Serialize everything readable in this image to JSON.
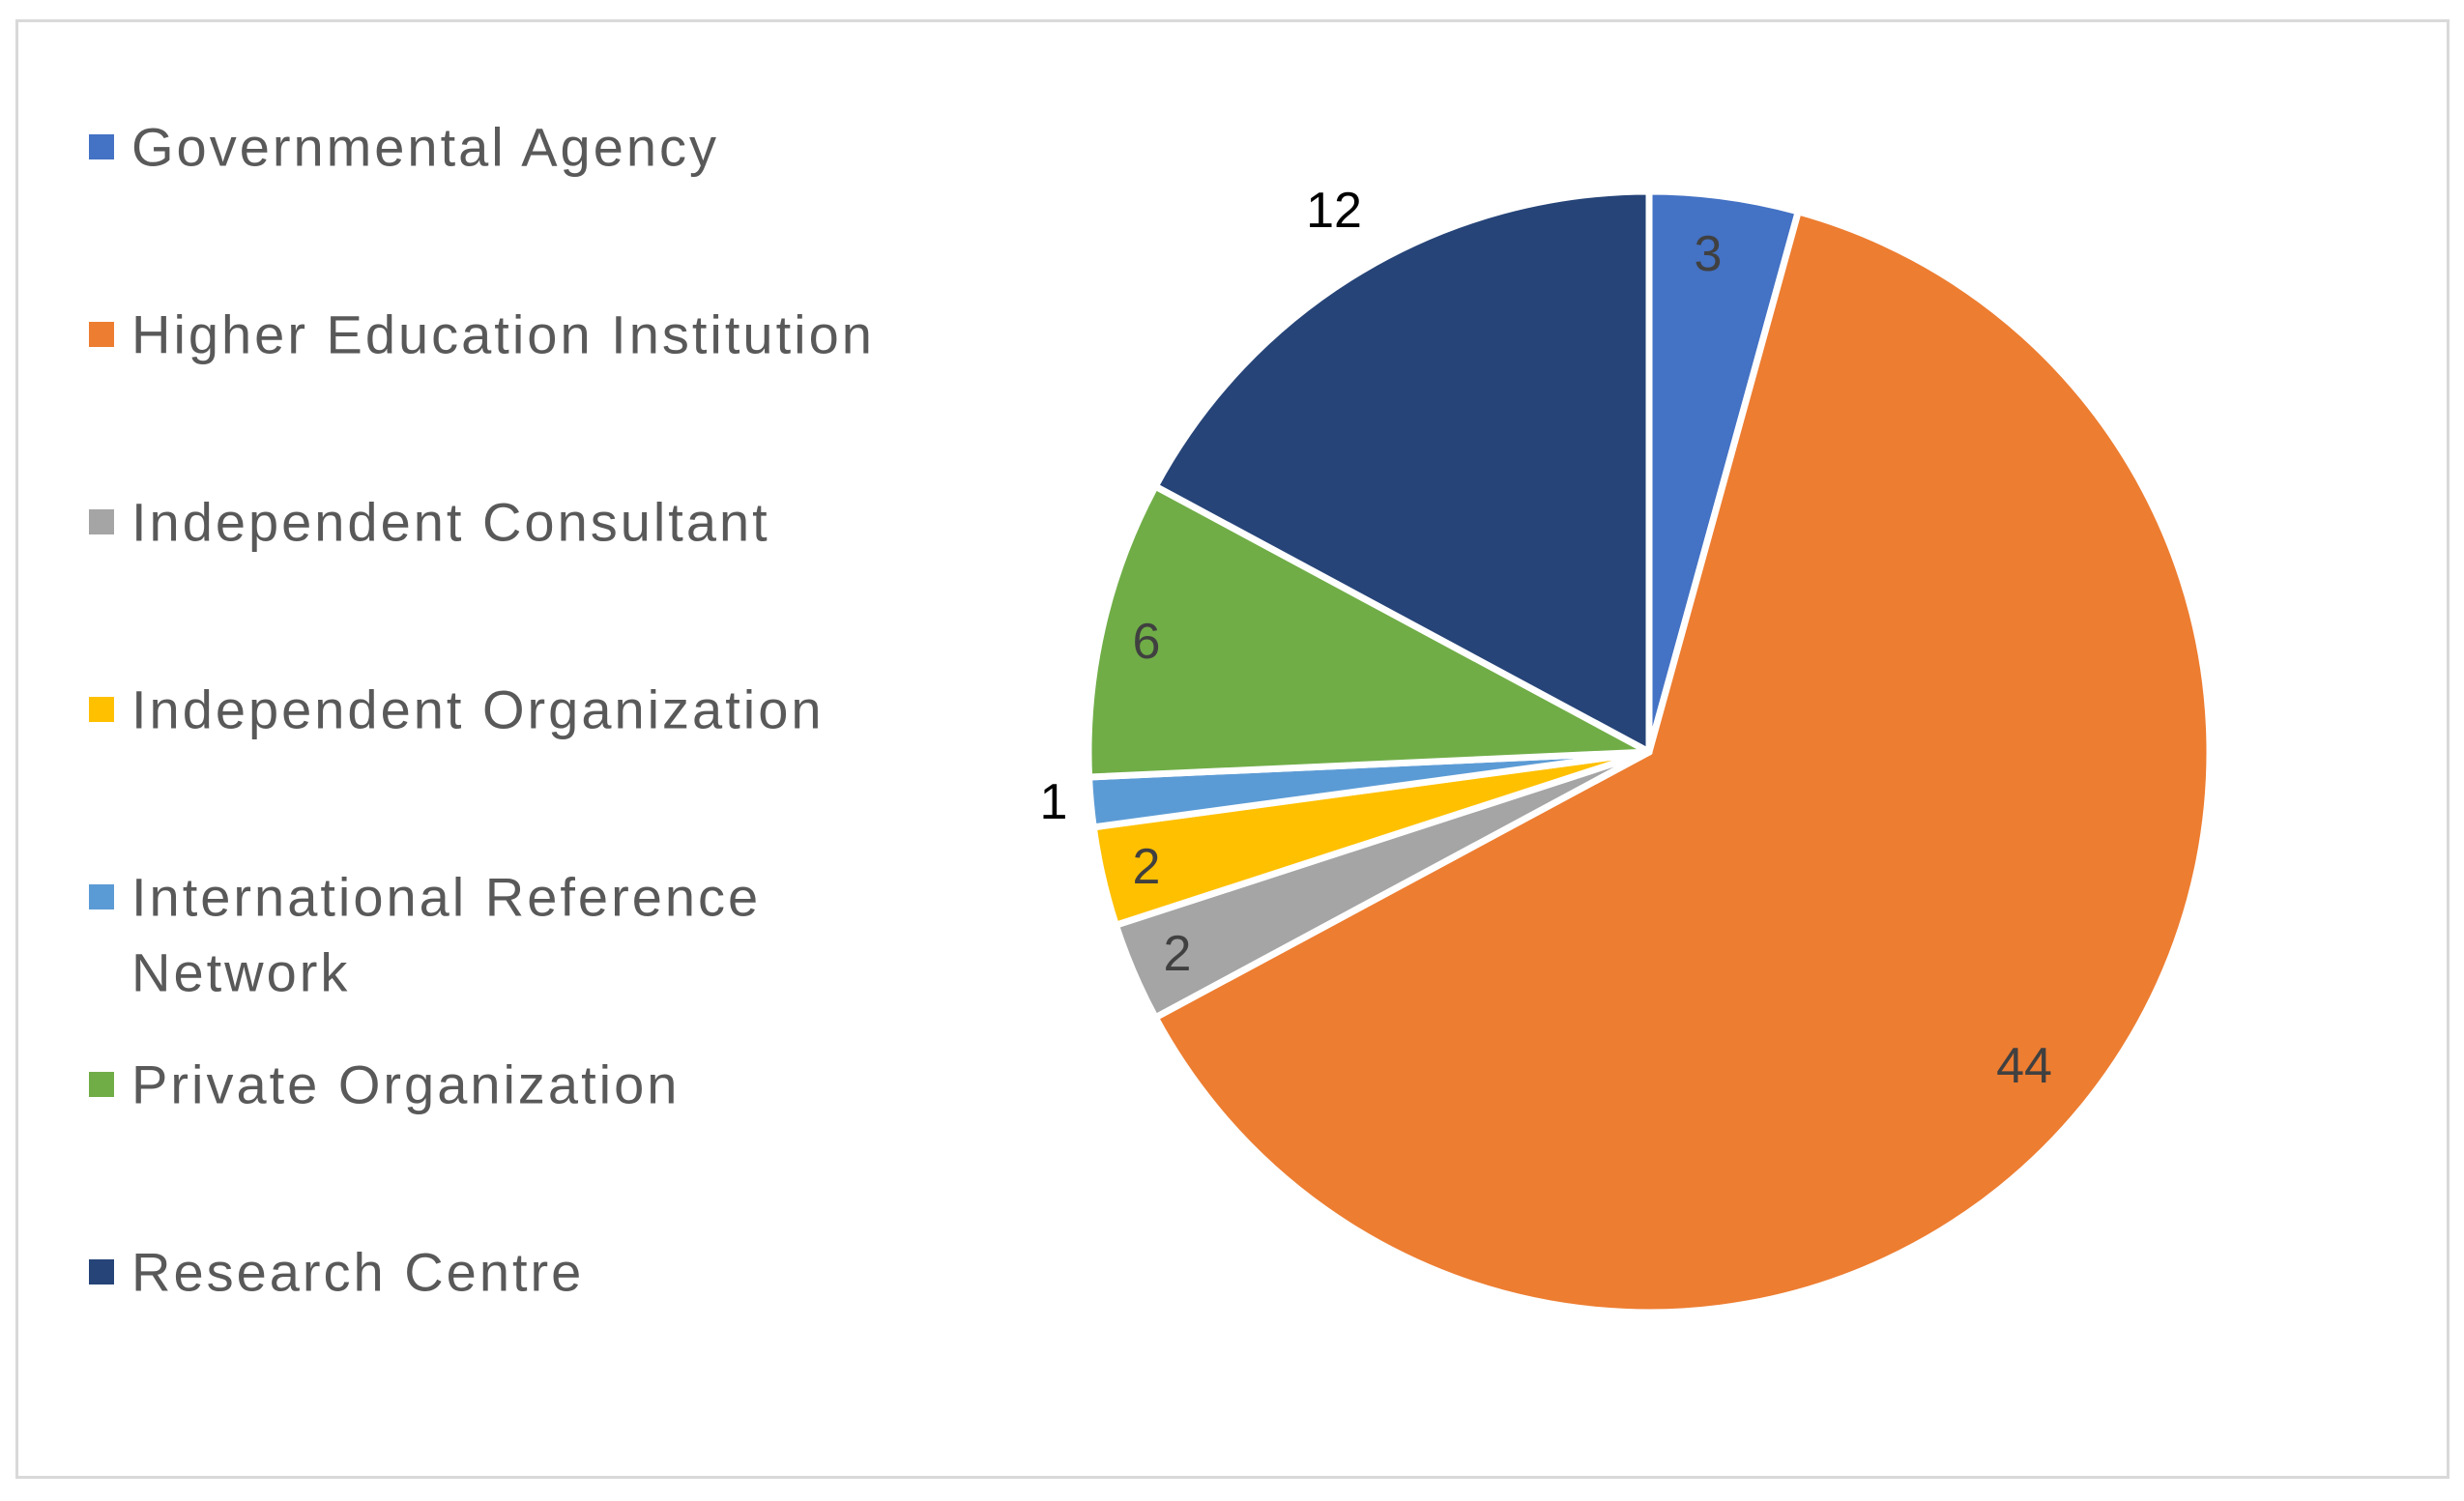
{
  "chart_data": {
    "type": "pie",
    "title": "",
    "legend_position": "left",
    "series": [
      {
        "categories": [
          "Governmental Agency",
          "Higher Education Institution",
          "Independent Consultant",
          "Independent Organization",
          "International Reference Network",
          "Private Organization",
          "Research Centre"
        ],
        "values": [
          3,
          44,
          2,
          2,
          1,
          6,
          12
        ],
        "colors": [
          "#4472C4",
          "#ED7D31",
          "#A5A5A5",
          "#FFC000",
          "#5B9BD5",
          "#70AD47",
          "#264478"
        ]
      }
    ],
    "legend_lines": [
      [
        "Governmental Agency"
      ],
      [
        "Higher Education Institution"
      ],
      [
        "Independent Consultant"
      ],
      [
        "Independent Organization"
      ],
      [
        "International Reference",
        "Network"
      ],
      [
        "Private Organization"
      ],
      [
        "Research Centre"
      ]
    ],
    "data_labels": [
      "3",
      "44",
      "2",
      "2",
      "1",
      "6",
      "12"
    ],
    "label_colors": [
      "#404040",
      "#404040",
      "#404040",
      "#404040",
      "#000000",
      "#404040",
      "#000000"
    ]
  }
}
